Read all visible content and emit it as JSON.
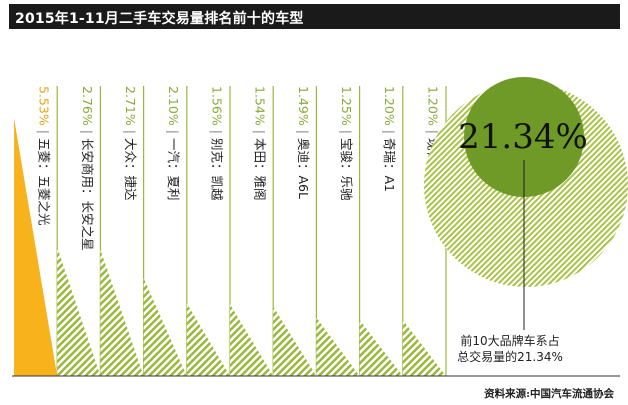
{
  "title": "2015年1-11月二手车交易量排名前十的车型",
  "source": "资料来源:中国汽车流通协会",
  "colors": {
    "top_bar": "#f7b21c",
    "bars": "#9ab93a",
    "circle": "#9ab93a",
    "inner_circle": "#6f9a28",
    "separator": "#9ab93a"
  },
  "chart_data": {
    "type": "bar",
    "categories": [
      "五菱：五菱之光",
      "长安商用：长安之星",
      "大众：捷达",
      "一汽：夏利",
      "别克：凯越",
      "本田：雅阁",
      "奥迪：A6L",
      "宝骏：乐驰",
      "奇瑞：A1",
      "现代：伊兰特"
    ],
    "value_labels": [
      "5.53%",
      "2.76%",
      "2.71%",
      "2.10%",
      "1.56%",
      "1.54%",
      "1.49%",
      "1.25%",
      "1.20%",
      "1.20%"
    ],
    "values": [
      5.53,
      2.76,
      2.71,
      2.1,
      1.56,
      1.54,
      1.49,
      1.25,
      1.2,
      1.2
    ],
    "total": {
      "value_label": "21.34%",
      "value": 21.34,
      "annotation_line1": "前10大品牌车系占",
      "annotation_line2": "总交易量的21.34%"
    }
  }
}
